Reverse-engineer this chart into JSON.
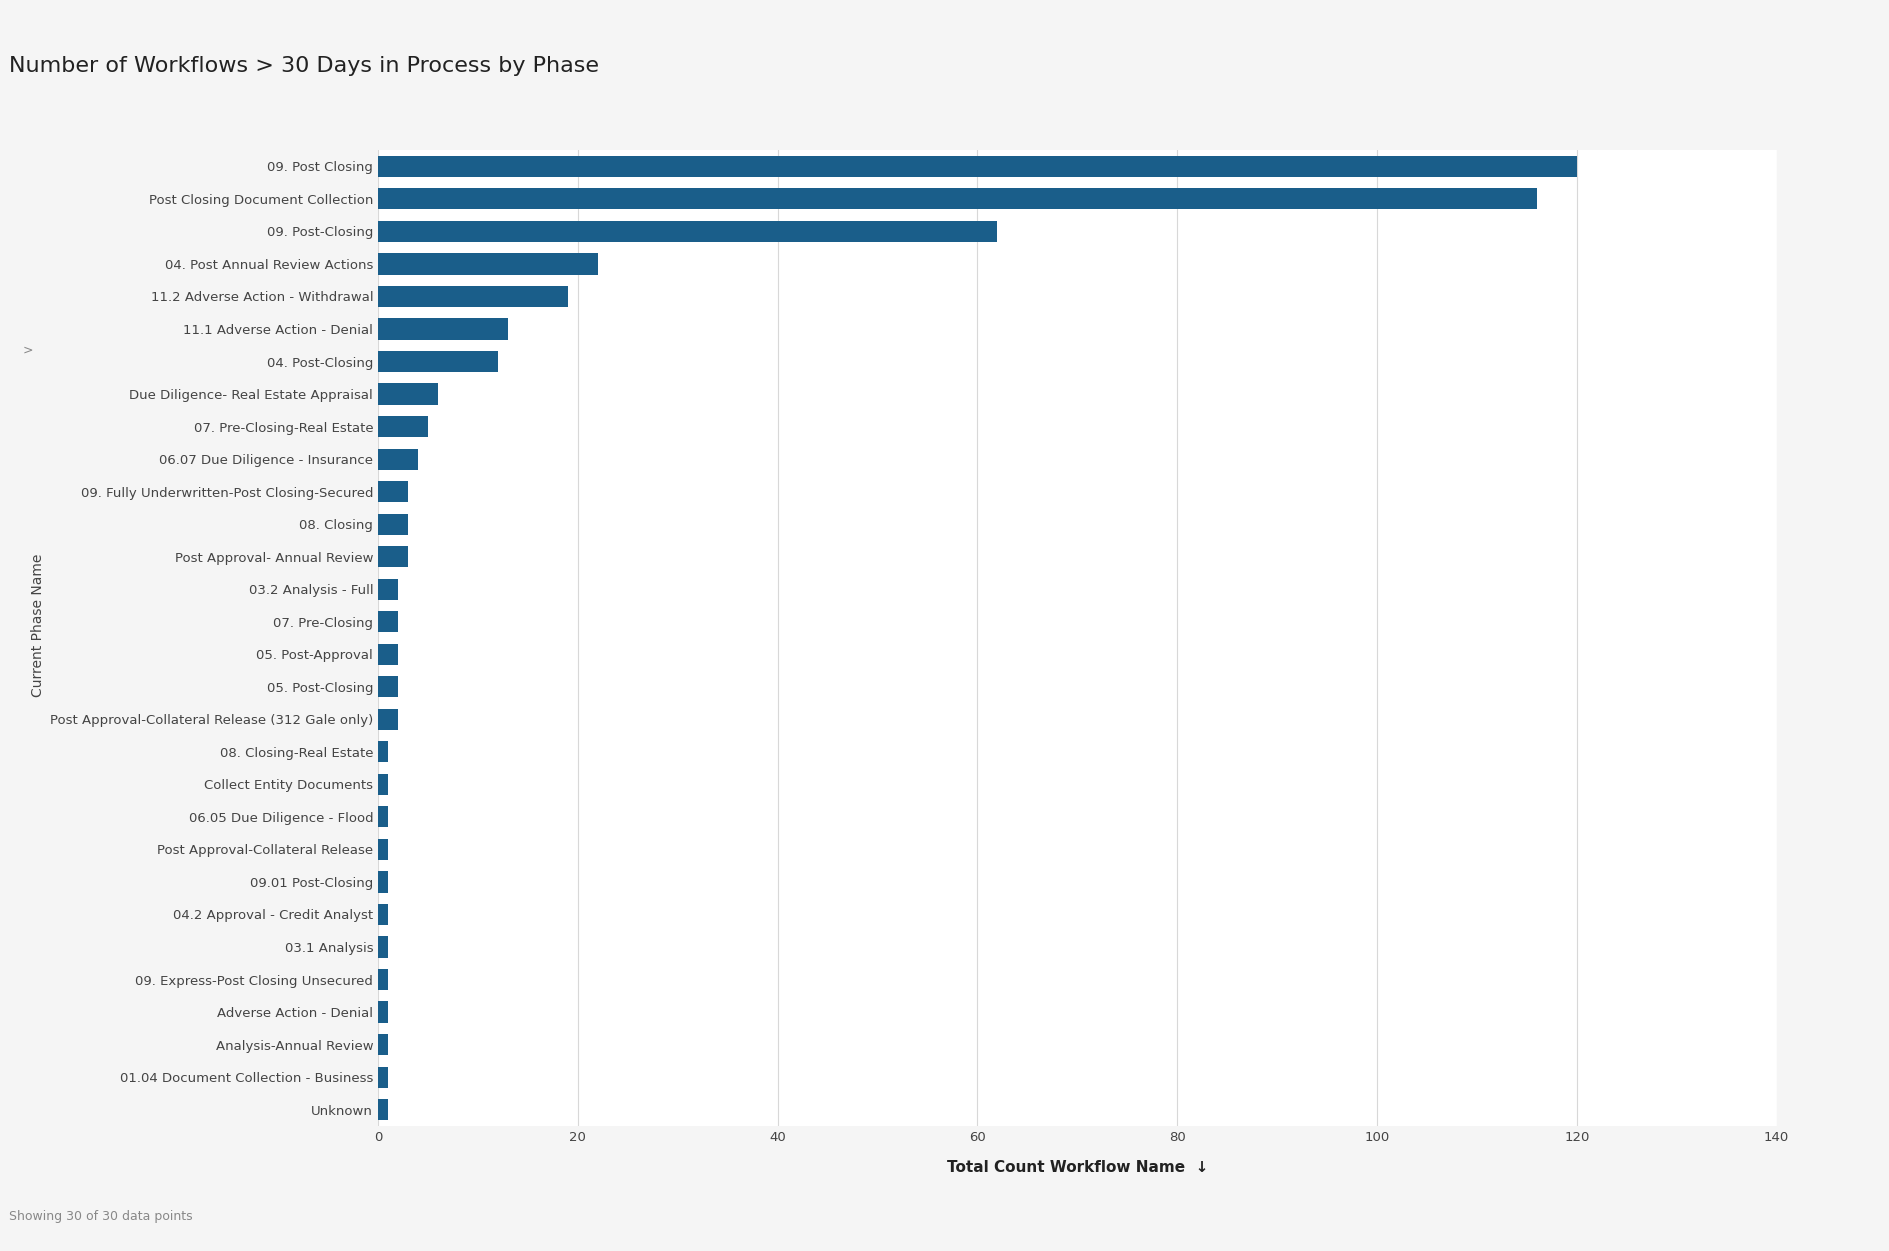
{
  "title": "Number of Workflows > 30 Days in Process by Phase",
  "categories": [
    "09. Post Closing",
    "Post Closing Document Collection",
    "09. Post-Closing",
    "04. Post Annual Review Actions",
    "11.2 Adverse Action - Withdrawal",
    "11.1 Adverse Action - Denial",
    "04. Post-Closing",
    "Due Diligence- Real Estate Appraisal",
    "07. Pre-Closing-Real Estate",
    "06.07 Due Diligence - Insurance",
    "09. Fully Underwritten-Post Closing-Secured",
    "08. Closing",
    "Post Approval- Annual Review",
    "03.2 Analysis - Full",
    "07. Pre-Closing",
    "05. Post-Approval",
    "05. Post-Closing",
    "Post Approval-Collateral Release (312 Gale only)",
    "08. Closing-Real Estate",
    "Collect Entity Documents",
    "06.05 Due Diligence - Flood",
    "Post Approval-Collateral Release",
    "09.01 Post-Closing",
    "04.2 Approval - Credit Analyst",
    "03.1 Analysis",
    "09. Express-Post Closing Unsecured",
    "Adverse Action - Denial",
    "Analysis-Annual Review",
    "01.04 Document Collection - Business",
    "Unknown"
  ],
  "values": [
    120,
    116,
    62,
    22,
    19,
    13,
    12,
    6,
    5,
    4,
    3,
    3,
    3,
    2,
    2,
    2,
    2,
    2,
    1,
    1,
    1,
    1,
    1,
    1,
    1,
    1,
    1,
    1,
    1,
    1
  ],
  "bar_color": "#1a5e8a",
  "background_color": "#f5f5f5",
  "plot_bg_color": "#ffffff",
  "grid_color": "#d8d8d8",
  "xlabel": "Total Count Workflow Name",
  "ylabel": "Current Phase Name",
  "xlabel_fontsize": 11,
  "ylabel_fontsize": 10,
  "title_fontsize": 16,
  "tick_fontsize": 9.5,
  "xlim": [
    0,
    140
  ],
  "xticks": [
    0,
    20,
    40,
    60,
    80,
    100,
    120,
    140
  ],
  "footnote": "Showing 30 of 30 data points"
}
